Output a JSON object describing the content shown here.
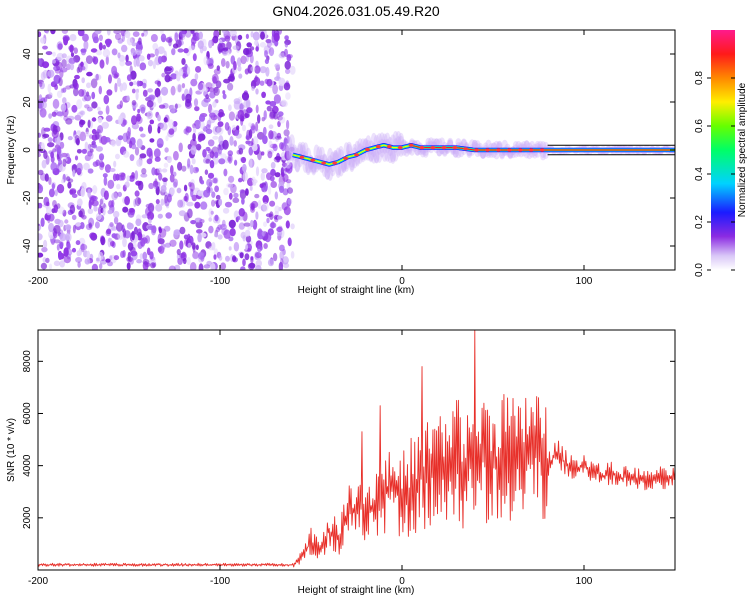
{
  "title": "GN04.2026.031.05.49.R20",
  "chart_data": [
    {
      "type": "heatmap",
      "xlabel": "Height of straight line (km)",
      "ylabel": "Frequency (Hz)",
      "xlim": [
        -200,
        150
      ],
      "ylim": [
        -50,
        50
      ],
      "x_ticks": [
        -200,
        -100,
        0,
        100
      ],
      "y_ticks": [
        -40,
        -20,
        0,
        20,
        40
      ],
      "noise_region_x": [
        -200,
        -60
      ],
      "signal_ridge": {
        "x": [
          -60,
          -55,
          -50,
          -45,
          -40,
          -35,
          -30,
          -25,
          -20,
          -15,
          -10,
          -5,
          0,
          5,
          10,
          20,
          30,
          40,
          60,
          80,
          100,
          150
        ],
        "y": [
          -2,
          -3,
          -4,
          -5,
          -6,
          -5,
          -3,
          -2,
          0,
          1,
          2,
          1,
          1,
          2,
          1,
          1,
          1,
          0,
          0,
          0,
          0,
          0
        ]
      },
      "colorbar": {
        "label": "Normalized spectral amplitude",
        "range": [
          0,
          1
        ],
        "ticks": [
          0.0,
          0.2,
          0.4,
          0.6,
          0.8
        ]
      }
    },
    {
      "type": "line",
      "xlabel": "Height of straight line (km)",
      "ylabel": "SNR (10 * v/v)",
      "xlim": [
        -200,
        150
      ],
      "ylim": [
        0,
        9200
      ],
      "x_ticks": [
        -200,
        -100,
        0,
        100
      ],
      "y_ticks": [
        2000,
        4000,
        6000,
        8000
      ],
      "color": "#e8302a",
      "series": [
        {
          "x": [
            -200,
            -180,
            -160,
            -140,
            -120,
            -100,
            -80,
            -60,
            -55,
            -50,
            -45,
            -40,
            -35,
            -30,
            -25,
            -20,
            -15,
            -10,
            -5,
            0,
            5,
            10,
            15,
            20,
            25,
            30,
            35,
            40,
            45,
            50,
            55,
            60,
            65,
            70,
            75,
            80,
            85,
            90,
            95,
            100,
            105,
            110,
            115,
            120,
            125,
            130,
            135,
            140,
            145,
            150
          ],
          "y": [
            200,
            200,
            200,
            200,
            200,
            200,
            200,
            200,
            500,
            1100,
            800,
            1500,
            1200,
            2000,
            2600,
            2200,
            2500,
            3100,
            3000,
            2800,
            3200,
            3500,
            3800,
            4000,
            3600,
            4300,
            3800,
            4200,
            4500,
            4100,
            4600,
            4200,
            4000,
            4800,
            4400,
            4000,
            4500,
            4100,
            3900,
            4000,
            3800,
            3600,
            3700,
            3500,
            3600,
            3500,
            3400,
            3600,
            3450,
            3600
          ]
        }
      ],
      "spikes": [
        {
          "x": -22,
          "y": 5300
        },
        {
          "x": -12,
          "y": 6300
        },
        {
          "x": 11,
          "y": 7800
        },
        {
          "x": 20,
          "y": 5500
        },
        {
          "x": 30,
          "y": 6500
        },
        {
          "x": 40,
          "y": 9200
        },
        {
          "x": 44,
          "y": 6200
        },
        {
          "x": 55,
          "y": 6500
        },
        {
          "x": 62,
          "y": 5900
        },
        {
          "x": 70,
          "y": 5500
        }
      ]
    }
  ]
}
